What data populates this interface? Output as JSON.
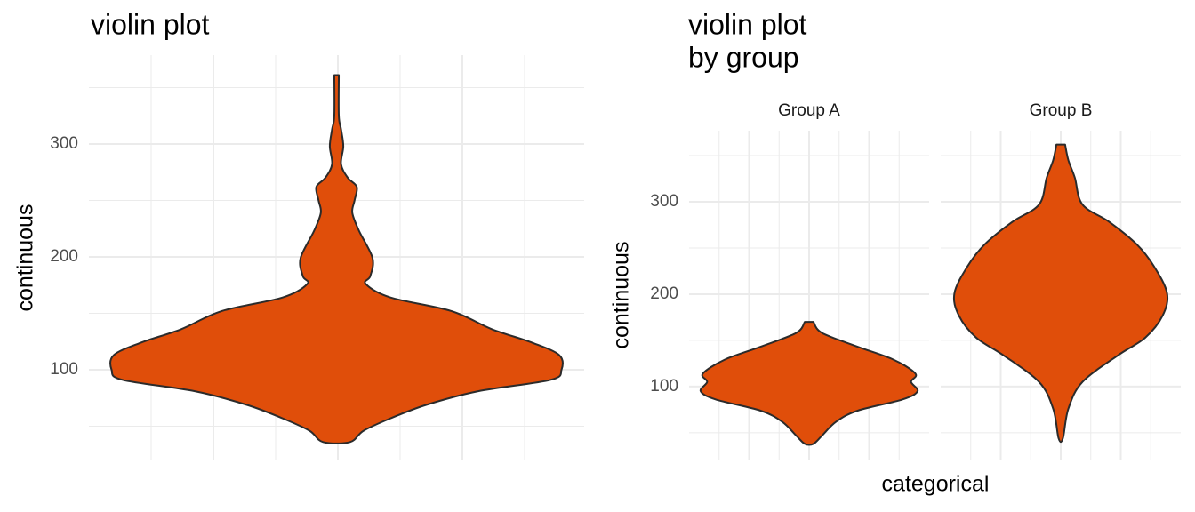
{
  "chart_data": [
    {
      "type": "violin",
      "title": "violin plot",
      "y_label": "continuous",
      "color": "#e04e0a",
      "ylim": [
        19.7,
        378.7
      ],
      "yticks": [
        100,
        200,
        300
      ],
      "minor_yticks": [
        50,
        150,
        250,
        350
      ],
      "grid": true,
      "categories": [
        null
      ],
      "violins": [
        {
          "y": [
            361,
            325,
            313,
            298,
            282,
            270,
            262,
            250,
            239,
            223,
            199,
            183,
            176,
            164,
            152,
            136,
            124,
            113,
            100,
            91,
            81,
            69,
            57,
            46,
            36
          ],
          "density": [
            0.01,
            0.01,
            0.02,
            0.03,
            0.02,
            0.05,
            0.09,
            0.08,
            0.07,
            0.1,
            0.16,
            0.15,
            0.13,
            0.24,
            0.51,
            0.69,
            0.87,
            0.99,
            1,
            0.95,
            0.63,
            0.4,
            0.24,
            0.12,
            0.06
          ]
        }
      ]
    },
    {
      "type": "violin",
      "title": [
        "violin plot",
        "by group"
      ],
      "y_label": "continuous",
      "x_label": "categorical",
      "color": "#e04e0a",
      "ylim": [
        20,
        377
      ],
      "yticks": [
        100,
        200,
        300
      ],
      "minor_yticks": [
        50,
        150,
        250,
        350
      ],
      "grid": true,
      "panels": [
        "Group A",
        "Group B"
      ],
      "violins": [
        {
          "y": [
            170,
            158,
            143,
            129,
            114,
            105,
            95,
            86,
            74,
            62,
            47,
            38
          ],
          "density": [
            0.04,
            0.12,
            0.45,
            0.78,
            0.98,
            0.94,
            1,
            0.86,
            0.45,
            0.25,
            0.12,
            0.04
          ]
        },
        {
          "y": [
            362,
            345,
            326,
            297,
            278,
            254,
            230,
            201,
            177,
            153,
            134,
            105,
            76,
            44
          ],
          "density": [
            0.04,
            0.07,
            0.13,
            0.2,
            0.45,
            0.7,
            0.86,
            0.98,
            0.94,
            0.78,
            0.53,
            0.2,
            0.07,
            0.02
          ]
        }
      ]
    }
  ]
}
